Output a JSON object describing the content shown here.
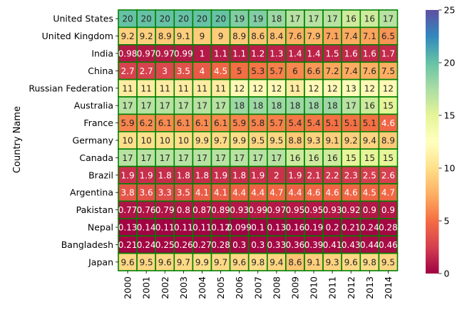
{
  "chart_data": {
    "type": "heatmap",
    "title": "",
    "xlabel": "",
    "ylabel": "Country Name",
    "x": [
      "2000",
      "2001",
      "2002",
      "2003",
      "2004",
      "2005",
      "2006",
      "2007",
      "2008",
      "2009",
      "2010",
      "2011",
      "2012",
      "2013",
      "2014"
    ],
    "y": [
      "United States",
      "United Kingdom",
      "India",
      "China",
      "Russian Federation",
      "Australia",
      "France",
      "Germany",
      "Canada",
      "Brazil",
      "Argentina",
      "Pakistan",
      "Nepal",
      "Bangladesh",
      "Japan"
    ],
    "values": [
      [
        20,
        20,
        20,
        20,
        20,
        20,
        19,
        19,
        18,
        17,
        17,
        17,
        16,
        16,
        17
      ],
      [
        9.2,
        9.2,
        8.9,
        9.1,
        9,
        9,
        8.9,
        8.6,
        8.4,
        7.6,
        7.9,
        7.1,
        7.4,
        7.1,
        6.5
      ],
      [
        0.98,
        0.97,
        0.97,
        0.99,
        1,
        1.1,
        1.1,
        1.2,
        1.3,
        1.4,
        1.4,
        1.5,
        1.6,
        1.6,
        1.7
      ],
      [
        2.7,
        2.7,
        3,
        3.5,
        4,
        4.5,
        5,
        5.3,
        5.7,
        6,
        6.6,
        7.2,
        7.4,
        7.6,
        7.5
      ],
      [
        11,
        11,
        11,
        11,
        11,
        11,
        12,
        12,
        12,
        11,
        12,
        12,
        13,
        12,
        12
      ],
      [
        17,
        17,
        17,
        17,
        17,
        17,
        18,
        18,
        18,
        18,
        18,
        18,
        17,
        16,
        15
      ],
      [
        5.9,
        6.2,
        6.1,
        6.1,
        6.1,
        6.1,
        5.9,
        5.8,
        5.7,
        5.4,
        5.4,
        5.1,
        5.1,
        5.1,
        4.6
      ],
      [
        10,
        10,
        10,
        10,
        9.9,
        9.7,
        9.9,
        9.5,
        9.5,
        8.8,
        9.3,
        9.1,
        9.2,
        9.4,
        8.9
      ],
      [
        17,
        17,
        17,
        17,
        17,
        17,
        17,
        17,
        17,
        16,
        16,
        16,
        15,
        15,
        15
      ],
      [
        1.9,
        1.9,
        1.8,
        1.8,
        1.8,
        1.9,
        1.8,
        1.9,
        2,
        1.9,
        2.1,
        2.2,
        2.3,
        2.5,
        2.6
      ],
      [
        3.8,
        3.6,
        3.3,
        3.5,
        4.1,
        4.1,
        4.4,
        4.4,
        4.7,
        4.4,
        4.6,
        4.6,
        4.6,
        4.5,
        4.7
      ],
      [
        0.77,
        0.76,
        0.79,
        0.8,
        0.87,
        0.89,
        0.93,
        0.99,
        0.97,
        0.95,
        0.95,
        0.93,
        0.92,
        0.9,
        0.9
      ],
      [
        0.13,
        0.14,
        0.11,
        0.11,
        0.11,
        0.12,
        0.099,
        0.1,
        0.13,
        0.16,
        0.19,
        0.2,
        0.21,
        0.24,
        0.28
      ],
      [
        0.21,
        0.24,
        0.25,
        0.26,
        0.27,
        0.28,
        0.3,
        0.3,
        0.33,
        0.36,
        0.39,
        0.41,
        0.43,
        0.44,
        0.46
      ],
      [
        9.6,
        9.5,
        9.6,
        9.7,
        9.9,
        9.7,
        9.6,
        9.8,
        9.4,
        8.6,
        9.1,
        9.3,
        9.6,
        9.8,
        9.5
      ]
    ],
    "colorbar": {
      "range": [
        0,
        25
      ],
      "ticks": [
        0,
        5,
        10,
        15,
        20,
        25
      ],
      "colormap": "Spectral"
    },
    "cell_border_color": "#008000",
    "grid": false,
    "legend": "colorbar-right"
  }
}
